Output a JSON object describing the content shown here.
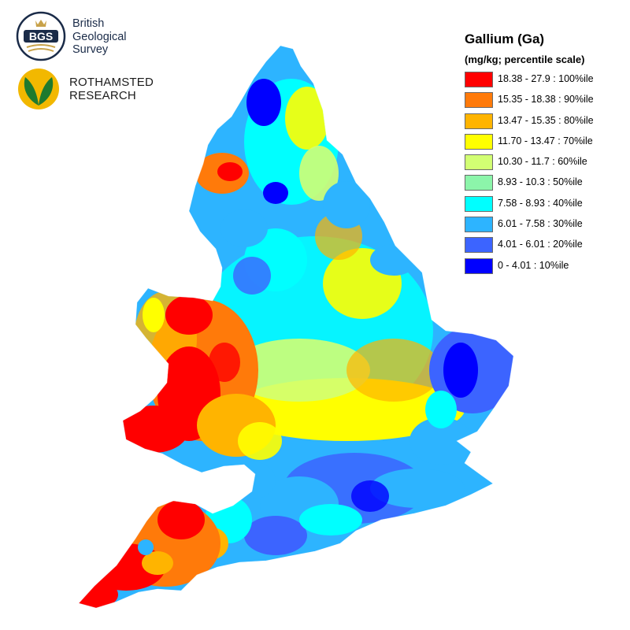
{
  "logos": {
    "bgs": {
      "initials": "BGS",
      "line1": "British",
      "line2": "Geological",
      "line3": "Survey"
    },
    "rothamsted": {
      "line1": "ROTHAMSTED",
      "line2": "RESEARCH"
    }
  },
  "legend": {
    "title": "Gallium (Ga)",
    "subtitle": "(mg/kg; percentile scale)",
    "items": [
      {
        "label": "18.38 - 27.9 : 100%ile",
        "color": "#ff0000"
      },
      {
        "label": "15.35 - 18.38 : 90%ile",
        "color": "#ff7a0a"
      },
      {
        "label": "13.47 - 15.35 : 80%ile",
        "color": "#ffb400"
      },
      {
        "label": "11.70 - 13.47 : 70%ile",
        "color": "#ffff00"
      },
      {
        "label": "10.30 - 11.7 : 60%ile",
        "color": "#d2ff73"
      },
      {
        "label": "8.93 - 10.3 : 50%ile",
        "color": "#8cf5aa"
      },
      {
        "label": "7.58 - 8.93 : 40%ile",
        "color": "#00ffff"
      },
      {
        "label": "6.01 - 7.58 : 30%ile",
        "color": "#2db4ff"
      },
      {
        "label": "4.01 - 6.01 : 20%ile",
        "color": "#3c64ff"
      },
      {
        "label": "0 - 4.01 : 10%ile",
        "color": "#0000ff"
      }
    ]
  }
}
